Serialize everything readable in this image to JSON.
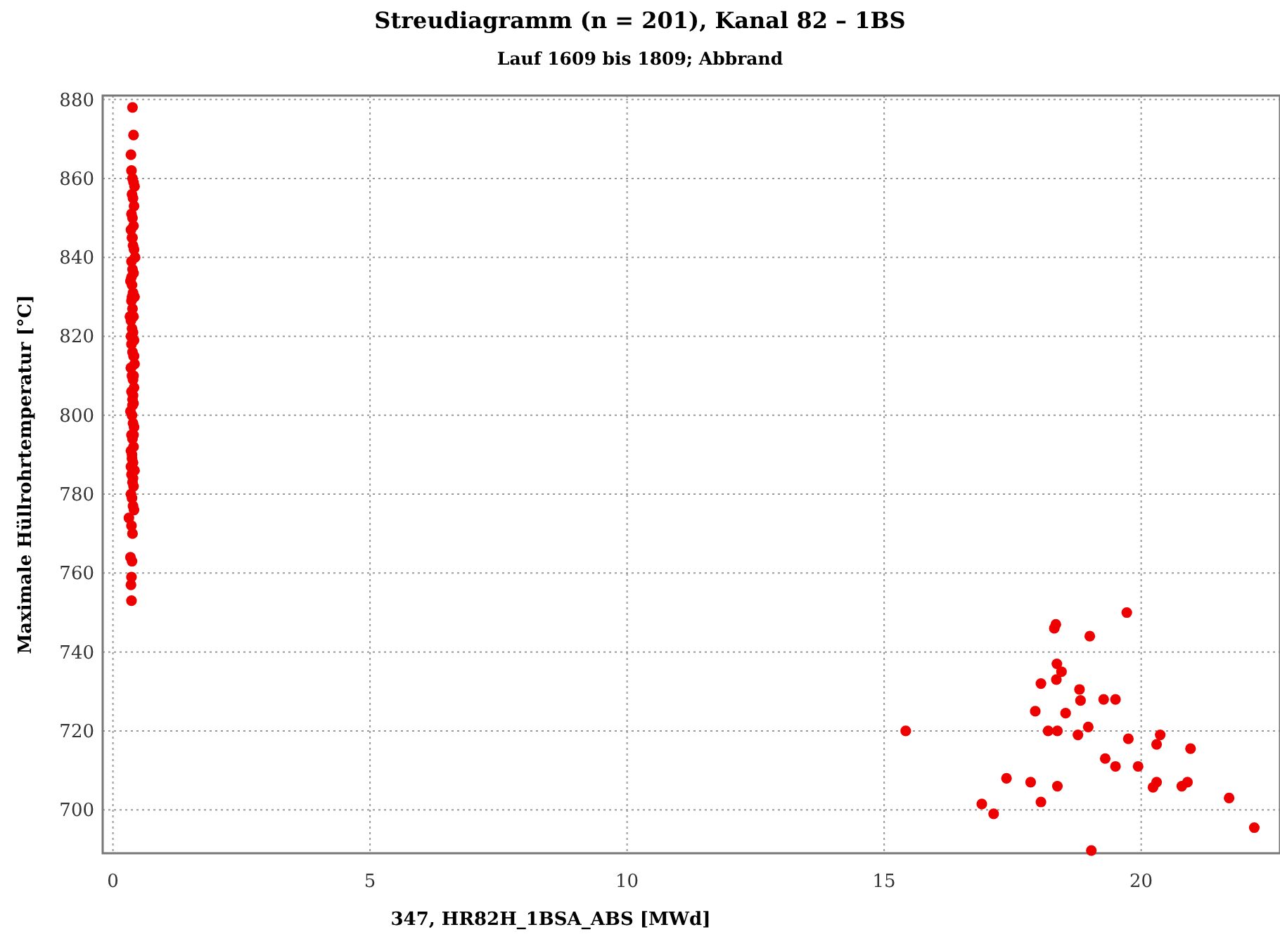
{
  "chart_data": {
    "type": "scatter",
    "title": "Streudiagramm (n = 201), Kanal 82 – 1BS",
    "subtitle": "Lauf 1609 bis 1809; Abbrand",
    "xlabel": "347, HR82H_1BSA_ABS [MWd]",
    "ylabel": "Maximale Hüllrohrtemperatur [°C]",
    "xlim": [
      -0.2,
      22.7
    ],
    "ylim": [
      689,
      881
    ],
    "xticks": [
      0,
      5,
      10,
      15,
      20
    ],
    "yticks": [
      700,
      720,
      740,
      760,
      780,
      800,
      820,
      840,
      860,
      880
    ],
    "grid": true,
    "marker": "circle",
    "series": [
      {
        "color": "#ee0000",
        "x": [
          0.38,
          0.4,
          0.35,
          0.36,
          0.38,
          0.4,
          0.42,
          0.37,
          0.39,
          0.41,
          0.36,
          0.38,
          0.4,
          0.35,
          0.37,
          0.39,
          0.41,
          0.43,
          0.36,
          0.38,
          0.4,
          0.34,
          0.37,
          0.39,
          0.42,
          0.36,
          0.38,
          0.4,
          0.35,
          0.37,
          0.39,
          0.41,
          0.36,
          0.38,
          0.4,
          0.42,
          0.35,
          0.37,
          0.39,
          0.41,
          0.36,
          0.38,
          0.4,
          0.34,
          0.37,
          0.39,
          0.41,
          0.36,
          0.38,
          0.4,
          0.35,
          0.37,
          0.39,
          0.42,
          0.36,
          0.38,
          0.4,
          0.35,
          0.37,
          0.39,
          0.41,
          0.31,
          0.38,
          0.4,
          0.35,
          0.37,
          0.39,
          0.41,
          0.33,
          0.36,
          0.38,
          0.4,
          0.37,
          0.35,
          0.39,
          0.36,
          0.38,
          0.34,
          0.37,
          0.36,
          0.35,
          0.36,
          0.35,
          15.42,
          16.9,
          17.13,
          17.38,
          17.85,
          18.05,
          17.94,
          18.05,
          18.19,
          18.37,
          18.37,
          18.31,
          18.34,
          18.36,
          18.35,
          18.45,
          18.53,
          18.77,
          18.8,
          18.82,
          18.97,
          19.0,
          19.03,
          19.27,
          19.5,
          19.3,
          19.5,
          19.72,
          19.75,
          19.94,
          20.23,
          20.3,
          20.3,
          20.37,
          20.79,
          20.9,
          20.96,
          21.71,
          22.2
        ],
        "values": [
          878,
          871,
          866,
          862,
          860,
          859,
          858,
          856,
          855,
          853,
          851,
          850,
          848,
          847,
          845,
          843,
          842,
          840,
          839,
          837,
          836,
          834,
          833,
          831,
          830,
          829,
          827,
          825,
          824,
          822,
          821,
          819,
          818,
          816,
          815,
          813,
          812,
          810,
          809,
          807,
          806,
          804,
          803,
          801,
          800,
          798,
          797,
          795,
          794,
          792,
          791,
          789,
          788,
          786,
          785,
          783,
          782,
          780,
          779,
          777,
          776,
          774,
          802.5,
          810,
          820,
          830,
          805,
          815,
          825,
          835,
          845,
          795,
          790,
          787,
          784,
          772,
          770,
          764,
          763,
          759,
          757,
          753,
          812,
          720,
          701.5,
          699,
          708,
          707,
          702,
          725,
          732,
          720,
          720,
          706,
          746,
          747,
          737,
          733,
          735,
          724.5,
          719,
          730.5,
          727.7,
          721,
          744,
          689.7,
          728,
          728,
          713,
          711,
          750,
          718,
          711,
          705.7,
          707,
          716.6,
          719,
          706,
          707,
          715.5,
          703,
          695.5
        ]
      }
    ]
  }
}
